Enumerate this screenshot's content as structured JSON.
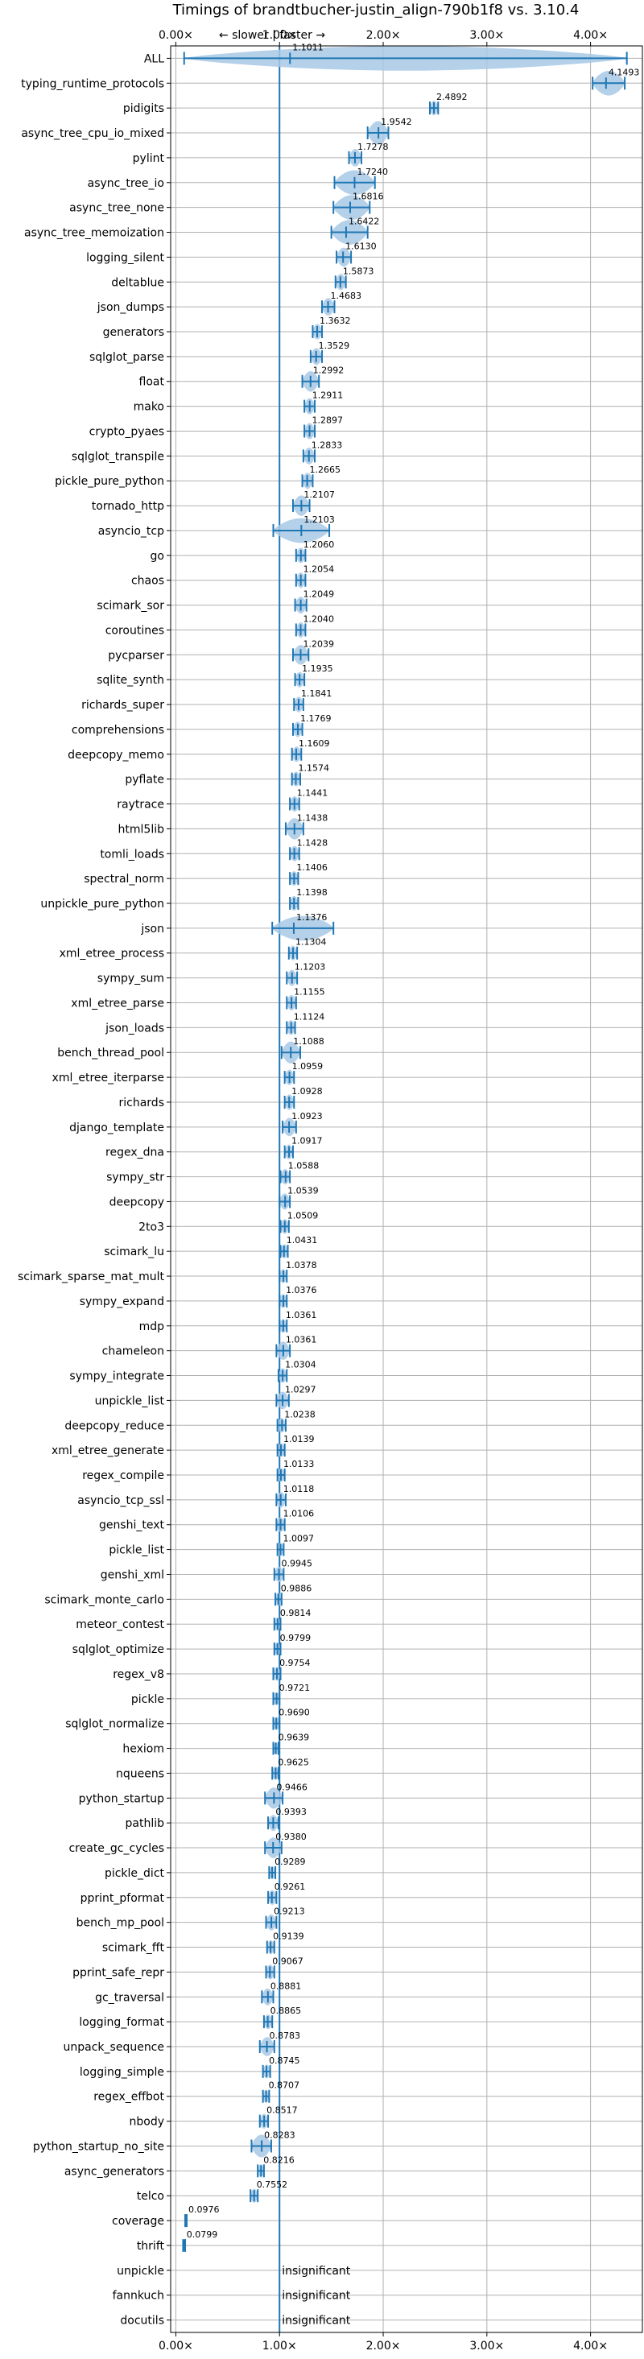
{
  "chart_data": {
    "type": "violin",
    "title": "Timings of brandtbucher-justin_align-790b1f8 vs. 3.10.4",
    "annotation": "← slower | faster →",
    "xlim": [
      -0.05,
      4.5
    ],
    "xticks": [
      0,
      1,
      2,
      3,
      4
    ],
    "xtick_labels": [
      "0.00×",
      "1.00×",
      "2.00×",
      "3.00×",
      "4.00×"
    ],
    "reference_line": 1.0,
    "grid": true,
    "insignificant_label": "insignificant",
    "benchmarks": [
      {
        "name": "ALL",
        "value": 1.1011,
        "label": "1.1011",
        "low": 0.08,
        "high": 4.35
      },
      {
        "name": "typing_runtime_protocols",
        "value": 4.1493,
        "label": "4.1493",
        "low": 4.02,
        "high": 4.33
      },
      {
        "name": "pidigits",
        "value": 2.4892,
        "label": "2.4892",
        "low": 2.45,
        "high": 2.53
      },
      {
        "name": "async_tree_cpu_io_mixed",
        "value": 1.9542,
        "label": "1.9542",
        "low": 1.85,
        "high": 2.05
      },
      {
        "name": "pylint",
        "value": 1.7278,
        "label": "1.7278",
        "low": 1.67,
        "high": 1.79
      },
      {
        "name": "async_tree_io",
        "value": 1.724,
        "label": "1.7240",
        "low": 1.53,
        "high": 1.92
      },
      {
        "name": "async_tree_none",
        "value": 1.6816,
        "label": "1.6816",
        "low": 1.52,
        "high": 1.87
      },
      {
        "name": "async_tree_memoization",
        "value": 1.6422,
        "label": "1.6422",
        "low": 1.5,
        "high": 1.85
      },
      {
        "name": "logging_silent",
        "value": 1.613,
        "label": "1.6130",
        "low": 1.55,
        "high": 1.69
      },
      {
        "name": "deltablue",
        "value": 1.5873,
        "label": "1.5873",
        "low": 1.54,
        "high": 1.64
      },
      {
        "name": "json_dumps",
        "value": 1.4683,
        "label": "1.4683",
        "low": 1.41,
        "high": 1.53
      },
      {
        "name": "generators",
        "value": 1.3632,
        "label": "1.3632",
        "low": 1.32,
        "high": 1.41
      },
      {
        "name": "sqlglot_parse",
        "value": 1.3529,
        "label": "1.3529",
        "low": 1.3,
        "high": 1.41
      },
      {
        "name": "float",
        "value": 1.2992,
        "label": "1.2992",
        "low": 1.22,
        "high": 1.38
      },
      {
        "name": "mako",
        "value": 1.2911,
        "label": "1.2911",
        "low": 1.24,
        "high": 1.34
      },
      {
        "name": "crypto_pyaes",
        "value": 1.2897,
        "label": "1.2897",
        "low": 1.24,
        "high": 1.34
      },
      {
        "name": "sqlglot_transpile",
        "value": 1.2833,
        "label": "1.2833",
        "low": 1.23,
        "high": 1.34
      },
      {
        "name": "pickle_pure_python",
        "value": 1.2665,
        "label": "1.2665",
        "low": 1.22,
        "high": 1.32
      },
      {
        "name": "tornado_http",
        "value": 1.2107,
        "label": "1.2107",
        "low": 1.13,
        "high": 1.29
      },
      {
        "name": "asyncio_tcp",
        "value": 1.2103,
        "label": "1.2103",
        "low": 0.94,
        "high": 1.48
      },
      {
        "name": "go",
        "value": 1.206,
        "label": "1.2060",
        "low": 1.16,
        "high": 1.25
      },
      {
        "name": "chaos",
        "value": 1.2054,
        "label": "1.2054",
        "low": 1.16,
        "high": 1.25
      },
      {
        "name": "scimark_sor",
        "value": 1.2049,
        "label": "1.2049",
        "low": 1.15,
        "high": 1.26
      },
      {
        "name": "coroutines",
        "value": 1.204,
        "label": "1.2040",
        "low": 1.16,
        "high": 1.25
      },
      {
        "name": "pycparser",
        "value": 1.2039,
        "label": "1.2039",
        "low": 1.13,
        "high": 1.28
      },
      {
        "name": "sqlite_synth",
        "value": 1.1935,
        "label": "1.1935",
        "low": 1.15,
        "high": 1.24
      },
      {
        "name": "richards_super",
        "value": 1.1841,
        "label": "1.1841",
        "low": 1.14,
        "high": 1.23
      },
      {
        "name": "comprehensions",
        "value": 1.1769,
        "label": "1.1769",
        "low": 1.13,
        "high": 1.22
      },
      {
        "name": "deepcopy_memo",
        "value": 1.1609,
        "label": "1.1609",
        "low": 1.12,
        "high": 1.21
      },
      {
        "name": "pyflate",
        "value": 1.1574,
        "label": "1.1574",
        "low": 1.12,
        "high": 1.2
      },
      {
        "name": "raytrace",
        "value": 1.1441,
        "label": "1.1441",
        "low": 1.1,
        "high": 1.19
      },
      {
        "name": "html5lib",
        "value": 1.1438,
        "label": "1.1438",
        "low": 1.06,
        "high": 1.23
      },
      {
        "name": "tomli_loads",
        "value": 1.1428,
        "label": "1.1428",
        "low": 1.1,
        "high": 1.19
      },
      {
        "name": "spectral_norm",
        "value": 1.1406,
        "label": "1.1406",
        "low": 1.1,
        "high": 1.18
      },
      {
        "name": "unpickle_pure_python",
        "value": 1.1398,
        "label": "1.1398",
        "low": 1.1,
        "high": 1.18
      },
      {
        "name": "json",
        "value": 1.1376,
        "label": "1.1376",
        "low": 0.93,
        "high": 1.52
      },
      {
        "name": "xml_etree_process",
        "value": 1.1304,
        "label": "1.1304",
        "low": 1.09,
        "high": 1.17
      },
      {
        "name": "sympy_sum",
        "value": 1.1203,
        "label": "1.1203",
        "low": 1.07,
        "high": 1.17
      },
      {
        "name": "xml_etree_parse",
        "value": 1.1155,
        "label": "1.1155",
        "low": 1.07,
        "high": 1.16
      },
      {
        "name": "json_loads",
        "value": 1.1124,
        "label": "1.1124",
        "low": 1.07,
        "high": 1.15
      },
      {
        "name": "bench_thread_pool",
        "value": 1.1088,
        "label": "1.1088",
        "low": 1.02,
        "high": 1.2
      },
      {
        "name": "xml_etree_iterparse",
        "value": 1.0959,
        "label": "1.0959",
        "low": 1.05,
        "high": 1.14
      },
      {
        "name": "richards",
        "value": 1.0928,
        "label": "1.0928",
        "low": 1.05,
        "high": 1.14
      },
      {
        "name": "django_template",
        "value": 1.0923,
        "label": "1.0923",
        "low": 1.03,
        "high": 1.16
      },
      {
        "name": "regex_dna",
        "value": 1.0917,
        "label": "1.0917",
        "low": 1.05,
        "high": 1.13
      },
      {
        "name": "sympy_str",
        "value": 1.0588,
        "label": "1.0588",
        "low": 1.01,
        "high": 1.1
      },
      {
        "name": "deepcopy",
        "value": 1.0539,
        "label": "1.0539",
        "low": 1.0,
        "high": 1.1
      },
      {
        "name": "2to3",
        "value": 1.0509,
        "label": "1.0509",
        "low": 1.01,
        "high": 1.09
      },
      {
        "name": "scimark_lu",
        "value": 1.0431,
        "label": "1.0431",
        "low": 1.01,
        "high": 1.08
      },
      {
        "name": "scimark_sparse_mat_mult",
        "value": 1.0378,
        "label": "1.0378",
        "low": 1.0,
        "high": 1.07
      },
      {
        "name": "sympy_expand",
        "value": 1.0376,
        "label": "1.0376",
        "low": 1.0,
        "high": 1.07
      },
      {
        "name": "mdp",
        "value": 1.0361,
        "label": "1.0361",
        "low": 1.0,
        "high": 1.07
      },
      {
        "name": "chameleon",
        "value": 1.0361,
        "label": "1.0361",
        "low": 0.97,
        "high": 1.1
      },
      {
        "name": "sympy_integrate",
        "value": 1.0304,
        "label": "1.0304",
        "low": 0.99,
        "high": 1.07
      },
      {
        "name": "unpickle_list",
        "value": 1.0297,
        "label": "1.0297",
        "low": 0.97,
        "high": 1.09
      },
      {
        "name": "deepcopy_reduce",
        "value": 1.0238,
        "label": "1.0238",
        "low": 0.98,
        "high": 1.06
      },
      {
        "name": "xml_etree_generate",
        "value": 1.0139,
        "label": "1.0139",
        "low": 0.98,
        "high": 1.05
      },
      {
        "name": "regex_compile",
        "value": 1.0133,
        "label": "1.0133",
        "low": 0.98,
        "high": 1.05
      },
      {
        "name": "asyncio_tcp_ssl",
        "value": 1.0118,
        "label": "1.0118",
        "low": 0.97,
        "high": 1.06
      },
      {
        "name": "genshi_text",
        "value": 1.0106,
        "label": "1.0106",
        "low": 0.97,
        "high": 1.05
      },
      {
        "name": "pickle_list",
        "value": 1.0097,
        "label": "1.0097",
        "low": 0.98,
        "high": 1.04
      },
      {
        "name": "genshi_xml",
        "value": 0.9945,
        "label": "0.9945",
        "low": 0.95,
        "high": 1.04
      },
      {
        "name": "scimark_monte_carlo",
        "value": 0.9886,
        "label": "0.9886",
        "low": 0.96,
        "high": 1.02
      },
      {
        "name": "meteor_contest",
        "value": 0.9814,
        "label": "0.9814",
        "low": 0.95,
        "high": 1.01
      },
      {
        "name": "sqlglot_optimize",
        "value": 0.9799,
        "label": "0.9799",
        "low": 0.95,
        "high": 1.01
      },
      {
        "name": "regex_v8",
        "value": 0.9754,
        "label": "0.9754",
        "low": 0.94,
        "high": 1.01
      },
      {
        "name": "pickle",
        "value": 0.9721,
        "label": "0.9721",
        "low": 0.94,
        "high": 1.0
      },
      {
        "name": "sqlglot_normalize",
        "value": 0.969,
        "label": "0.9690",
        "low": 0.94,
        "high": 1.0
      },
      {
        "name": "hexiom",
        "value": 0.9639,
        "label": "0.9639",
        "low": 0.94,
        "high": 0.99
      },
      {
        "name": "nqueens",
        "value": 0.9625,
        "label": "0.9625",
        "low": 0.93,
        "high": 0.99
      },
      {
        "name": "python_startup",
        "value": 0.9466,
        "label": "0.9466",
        "low": 0.86,
        "high": 1.03
      },
      {
        "name": "pathlib",
        "value": 0.9393,
        "label": "0.9393",
        "low": 0.89,
        "high": 0.99
      },
      {
        "name": "create_gc_cycles",
        "value": 0.938,
        "label": "0.9380",
        "low": 0.86,
        "high": 1.02
      },
      {
        "name": "pickle_dict",
        "value": 0.9289,
        "label": "0.9289",
        "low": 0.9,
        "high": 0.96
      },
      {
        "name": "pprint_pformat",
        "value": 0.9261,
        "label": "0.9261",
        "low": 0.89,
        "high": 0.97
      },
      {
        "name": "bench_mp_pool",
        "value": 0.9213,
        "label": "0.9213",
        "low": 0.87,
        "high": 0.97
      },
      {
        "name": "scimark_fft",
        "value": 0.9139,
        "label": "0.9139",
        "low": 0.88,
        "high": 0.95
      },
      {
        "name": "pprint_safe_repr",
        "value": 0.9067,
        "label": "0.9067",
        "low": 0.87,
        "high": 0.95
      },
      {
        "name": "gc_traversal",
        "value": 0.8881,
        "label": "0.8881",
        "low": 0.83,
        "high": 0.94
      },
      {
        "name": "logging_format",
        "value": 0.8865,
        "label": "0.8865",
        "low": 0.85,
        "high": 0.93
      },
      {
        "name": "unpack_sequence",
        "value": 0.8783,
        "label": "0.8783",
        "low": 0.81,
        "high": 0.95
      },
      {
        "name": "logging_simple",
        "value": 0.8745,
        "label": "0.8745",
        "low": 0.84,
        "high": 0.91
      },
      {
        "name": "regex_effbot",
        "value": 0.8707,
        "label": "0.8707",
        "low": 0.84,
        "high": 0.9
      },
      {
        "name": "nbody",
        "value": 0.8517,
        "label": "0.8517",
        "low": 0.81,
        "high": 0.89
      },
      {
        "name": "python_startup_no_site",
        "value": 0.8283,
        "label": "0.8283",
        "low": 0.73,
        "high": 0.92
      },
      {
        "name": "async_generators",
        "value": 0.8216,
        "label": "0.8216",
        "low": 0.79,
        "high": 0.85
      },
      {
        "name": "telco",
        "value": 0.7552,
        "label": "0.7552",
        "low": 0.72,
        "high": 0.79
      },
      {
        "name": "coverage",
        "value": 0.0976,
        "label": "0.0976",
        "low": 0.09,
        "high": 0.105
      },
      {
        "name": "thrift",
        "value": 0.0799,
        "label": "0.0799",
        "low": 0.07,
        "high": 0.09
      },
      {
        "name": "unpickle",
        "value": null,
        "label": "",
        "low": null,
        "high": null
      },
      {
        "name": "fannkuch",
        "value": null,
        "label": "",
        "low": null,
        "high": null
      },
      {
        "name": "docutils",
        "value": null,
        "label": "",
        "low": null,
        "high": null
      }
    ]
  },
  "colors": {
    "violin_fill": "#a9c8e6",
    "violin_edge": "#1f77b4",
    "reference_line": "#1f77b4",
    "median": "#d62728",
    "grid": "#b0b0b0",
    "axis": "#000000"
  }
}
